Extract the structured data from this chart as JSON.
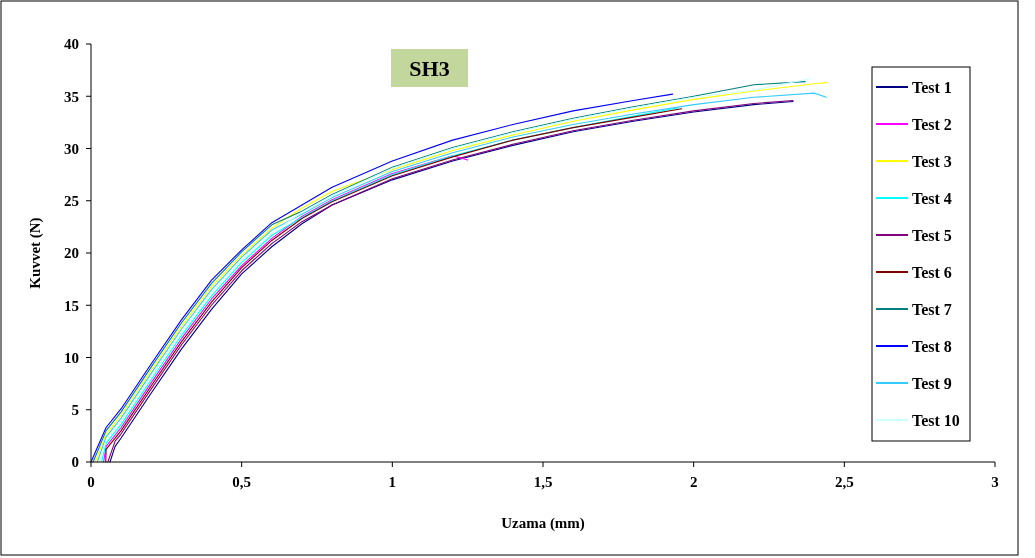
{
  "chart_data": {
    "type": "line",
    "title": "SH3",
    "xlabel": "Uzama (mm)",
    "ylabel": "Kuvvet (N)",
    "xlim": [
      0,
      3
    ],
    "xticks": [
      0,
      {
        "value": 0.5,
        "label": "0,5"
      },
      1,
      {
        "value": 1.5,
        "label": "1,5"
      },
      2,
      {
        "value": 2.5,
        "label": "2,5"
      },
      3
    ],
    "ylim": [
      0,
      40
    ],
    "yticks": [
      0,
      5,
      10,
      15,
      20,
      25,
      30,
      35,
      40
    ],
    "grid": false,
    "legend": "right",
    "marker": "none",
    "line_style": "solid",
    "series": [
      {
        "name": "Test 1",
        "color": "#000080",
        "x": [
          0.063,
          0.08,
          0.1,
          0.2,
          0.3,
          0.4,
          0.5,
          0.6,
          0.7,
          0.8,
          1,
          1.2,
          1.4,
          1.6,
          1.8,
          2,
          2.2,
          2.33
        ],
        "values": [
          0,
          1.5,
          2.3,
          6.6,
          10.8,
          14.6,
          18,
          20.6,
          22.8,
          24.6,
          27,
          28.8,
          30.3,
          31.6,
          32.6,
          33.5,
          34.2,
          34.5
        ]
      },
      {
        "name": "Test 2",
        "color": "#ff00ff",
        "x": [
          0.042,
          0.05,
          0.1,
          0.2,
          0.3,
          0.4,
          0.5,
          0.6,
          0.7,
          0.8,
          1,
          1.2,
          1.25
        ],
        "values": [
          0,
          1.5,
          3.3,
          7.6,
          11.8,
          15.6,
          18.8,
          21.4,
          23.5,
          25.1,
          27.6,
          29.3,
          28.9
        ]
      },
      {
        "name": "Test 3",
        "color": "#ffff00",
        "x": [
          0.014,
          0.05,
          0.1,
          0.2,
          0.3,
          0.4,
          0.5,
          0.6,
          0.7,
          0.8,
          1,
          1.2,
          1.4,
          1.6,
          1.8,
          2,
          2.2,
          2.4,
          2.44
        ],
        "values": [
          0,
          2.7,
          4.5,
          8.8,
          13,
          16.8,
          19.8,
          22.4,
          24.3,
          25.9,
          28,
          29.8,
          31.3,
          32.6,
          33.7,
          34.7,
          35.5,
          36.2,
          36.3
        ]
      },
      {
        "name": "Test 4",
        "color": "#00ffff",
        "x": [
          0.035,
          0.05,
          0.1,
          0.2,
          0.3,
          0.4,
          0.5,
          0.6,
          0.7,
          0.8,
          1,
          1.2,
          1.4,
          1.6,
          1.8,
          1.95
        ],
        "values": [
          0,
          1.8,
          3.6,
          7.9,
          12.1,
          15.9,
          19.1,
          21.7,
          23.4,
          25,
          27.5,
          29.3,
          30.8,
          32,
          33.1,
          33.9
        ]
      },
      {
        "name": "Test 5",
        "color": "#800080",
        "x": [
          0.056,
          0.08,
          0.1,
          0.2,
          0.3,
          0.4,
          0.5,
          0.6,
          0.7,
          0.8,
          1,
          1.2,
          1.4,
          1.6,
          1.8,
          2,
          2.2,
          2.33
        ],
        "values": [
          0,
          2,
          2.7,
          7,
          11.2,
          15,
          18.3,
          20.9,
          23,
          24.6,
          27.1,
          28.9,
          30.4,
          31.7,
          32.7,
          33.6,
          34.3,
          34.6
        ]
      },
      {
        "name": "Test 6",
        "color": "#800000",
        "x": [
          0.049,
          0.05,
          0.1,
          0.2,
          0.3,
          0.4,
          0.5,
          0.6,
          0.7,
          0.8,
          1,
          1.2,
          1.4,
          1.6,
          1.8,
          1.96
        ],
        "values": [
          0,
          1.2,
          3,
          7.3,
          11.5,
          15.3,
          18.6,
          21.2,
          23.3,
          24.9,
          27.4,
          29.2,
          30.8,
          32,
          33,
          33.8
        ]
      },
      {
        "name": "Test 7",
        "color": "#008080",
        "x": [
          0.007,
          0.05,
          0.1,
          0.2,
          0.3,
          0.4,
          0.5,
          0.6,
          0.7,
          0.8,
          1,
          1.2,
          1.4,
          1.6,
          1.8,
          2,
          2.2,
          2.37
        ],
        "values": [
          0,
          3,
          4.8,
          9.1,
          13.3,
          17.1,
          20.1,
          22.7,
          24,
          25.6,
          28.2,
          30.1,
          31.6,
          32.9,
          34,
          35,
          36.1,
          36.4
        ]
      },
      {
        "name": "Test 8",
        "color": "#0000ff",
        "x": [
          0,
          0.05,
          0.1,
          0.2,
          0.3,
          0.4,
          0.5,
          0.6,
          0.7,
          0.8,
          1,
          1.2,
          1.4,
          1.6,
          1.8,
          1.93
        ],
        "values": [
          0,
          3.3,
          5.1,
          9.4,
          13.6,
          17.4,
          20.3,
          22.9,
          24.6,
          26.3,
          28.8,
          30.8,
          32.3,
          33.6,
          34.6,
          35.2
        ]
      },
      {
        "name": "Test 9",
        "color": "#33ccff",
        "x": [
          0.021,
          0.05,
          0.1,
          0.2,
          0.3,
          0.4,
          0.5,
          0.6,
          0.7,
          0.8,
          1,
          1.2,
          1.4,
          1.6,
          1.8,
          2,
          2.2,
          2.4,
          2.44
        ],
        "values": [
          0,
          2.4,
          4.2,
          8.5,
          12.7,
          16.5,
          19.6,
          22.2,
          23.7,
          25.3,
          27.8,
          29.6,
          31.1,
          32.3,
          33.3,
          34.2,
          34.9,
          35.3,
          34.9
        ]
      },
      {
        "name": "Test 10",
        "color": "#ccffff",
        "x": [
          0.028,
          0.05,
          0.1,
          0.2,
          0.3,
          0.4,
          0.5,
          0.6,
          0.7,
          0.8,
          1,
          1.2,
          1.4,
          1.6,
          1.8,
          2,
          2.2,
          2.39
        ],
        "values": [
          0,
          2.1,
          3.9,
          8.2,
          12.4,
          16.2,
          19.3,
          21.9,
          23.9,
          25.5,
          28.1,
          30,
          31.5,
          32.8,
          33.9,
          34.9,
          35.6,
          36.7
        ]
      }
    ]
  }
}
